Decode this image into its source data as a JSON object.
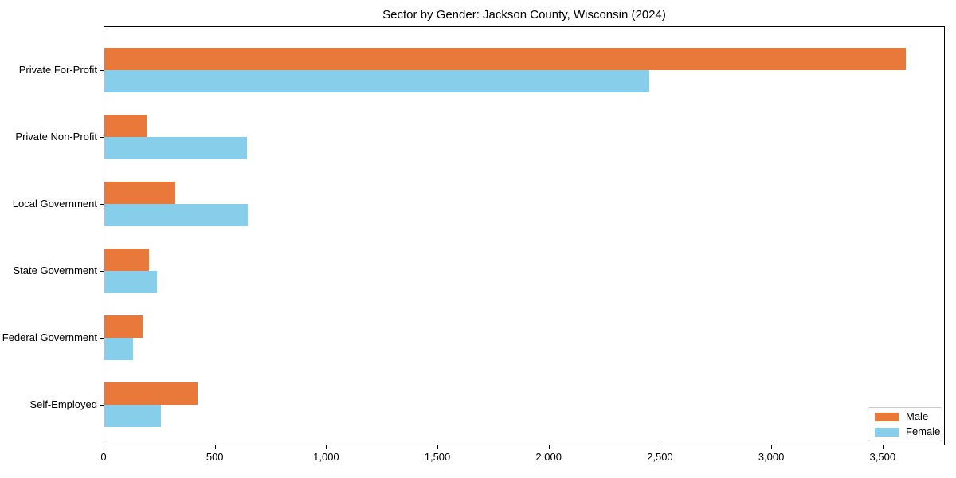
{
  "chart_data": {
    "type": "bar",
    "orientation": "horizontal",
    "title": "Sector by Gender: Jackson County, Wisconsin (2024)",
    "categories": [
      "Private For-Profit",
      "Private Non-Profit",
      "Local Government",
      "State Government",
      "Federal Government",
      "Self-Employed"
    ],
    "series": [
      {
        "name": "Male",
        "color": "#e8793a",
        "values": [
          3600,
          190,
          320,
          200,
          170,
          420
        ]
      },
      {
        "name": "Female",
        "color": "#87ceeb",
        "values": [
          2450,
          640,
          645,
          235,
          130,
          255
        ]
      }
    ],
    "xlabel": "",
    "ylabel": "",
    "xlim": [
      0,
      3780
    ],
    "xticks": [
      {
        "value": 0,
        "label": "0"
      },
      {
        "value": 500,
        "label": "500"
      },
      {
        "value": 1000,
        "label": "1,000"
      },
      {
        "value": 1500,
        "label": "1,500"
      },
      {
        "value": 2000,
        "label": "2,000"
      },
      {
        "value": 2500,
        "label": "2,500"
      },
      {
        "value": 3000,
        "label": "3,000"
      },
      {
        "value": 3500,
        "label": "3,500"
      }
    ],
    "grid": false,
    "legend": {
      "position": "lower right"
    },
    "colors": {
      "axis": "#000000",
      "legend_border": "#c9c9c9",
      "background": "#ffffff"
    }
  }
}
